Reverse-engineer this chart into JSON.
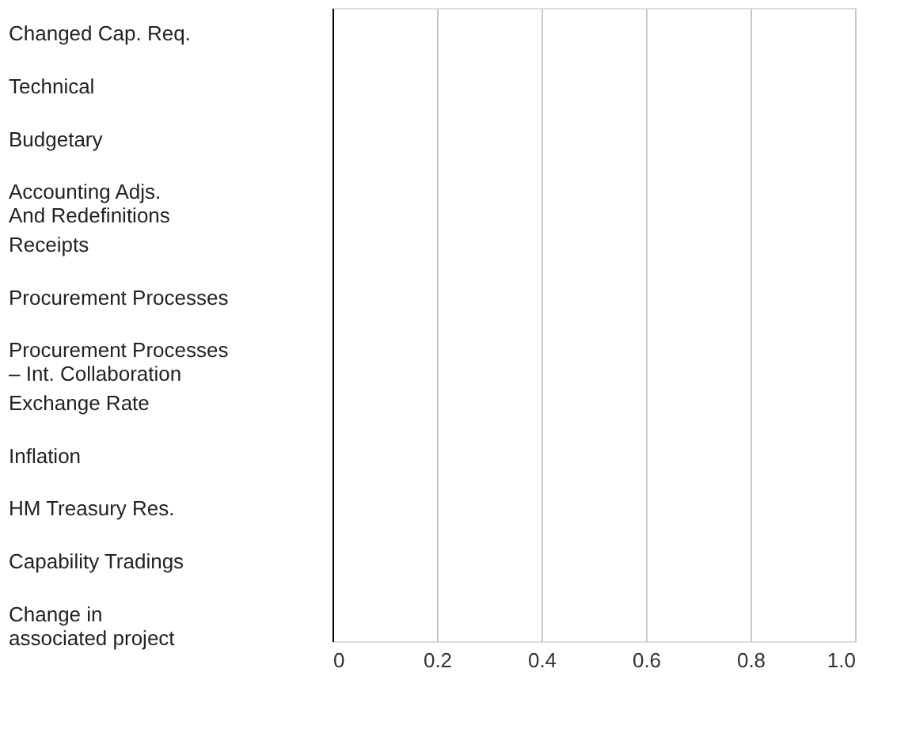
{
  "chart_data": {
    "type": "bar",
    "orientation": "horizontal",
    "categories": [
      "Changed Cap. Req.",
      "Technical",
      "Budgetary",
      "Accounting Adjs.\nAnd Redefinitions",
      "Receipts",
      "Procurement Processes",
      "Procurement Processes\n– Int. Collaboration",
      "Exchange Rate",
      "Inflation",
      "HM Treasury Res.",
      "Capability Tradings",
      "Change in\nassociated project"
    ],
    "values": [
      0,
      0,
      0,
      0,
      0,
      0,
      0,
      0,
      0,
      0,
      0,
      0
    ],
    "xlim": [
      0,
      1
    ],
    "xticks": [
      0,
      0.2,
      0.4,
      0.6,
      0.8,
      {
        "value": 1,
        "label": "1.0"
      }
    ],
    "grid": "x"
  }
}
